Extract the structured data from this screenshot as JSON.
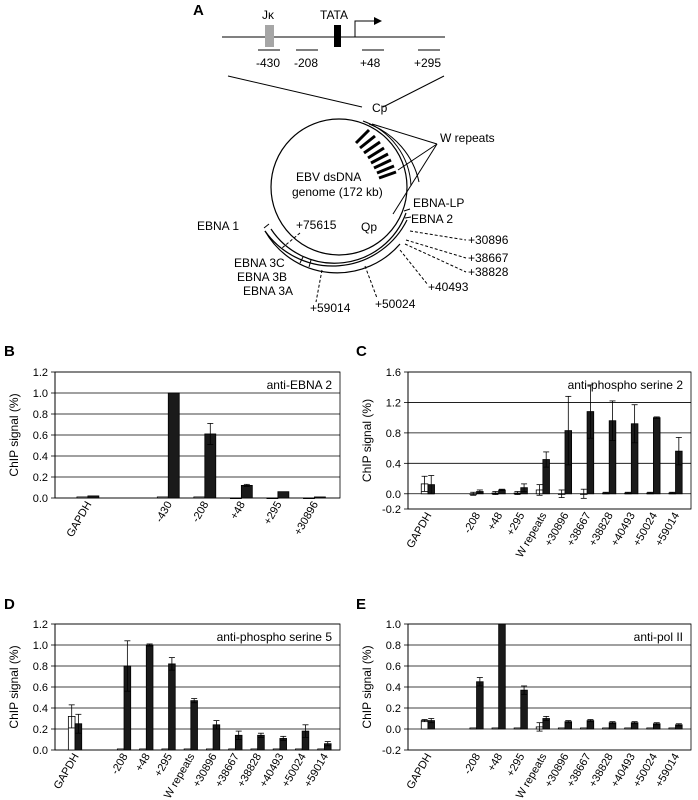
{
  "panels": {
    "A": "A",
    "B": "B",
    "C": "C",
    "D": "D",
    "E": "E"
  },
  "diagram": {
    "gene_labels": {
      "jk": "Jκ",
      "tata": "TATA"
    },
    "primers": [
      "-430",
      "-208",
      "+48",
      "+295"
    ],
    "promoter_cp": "Cp",
    "w_repeats": "W repeats",
    "genome_line1": "EBV dsDNA",
    "genome_line2": "genome (172 kb)",
    "ebna_labels": [
      "EBNA-LP",
      "EBNA 2",
      "EBNA 1",
      "EBNA 3C",
      "EBNA 3B",
      "EBNA 3A"
    ],
    "qp": "Qp",
    "amplicons": [
      "+75615",
      "+30896",
      "+38667",
      "+38828",
      "+40493",
      "+50024",
      "+59014"
    ]
  },
  "chart_data": [
    {
      "id": "B",
      "type": "bar",
      "annotation": "anti-EBNA 2",
      "ylabel": "ChIP signal (%)",
      "ylim": [
        0,
        1.2
      ],
      "yticks": [
        "0.0",
        "0.2",
        "0.4",
        "0.6",
        "0.8",
        "1.0",
        "1.2"
      ],
      "categories": [
        "GAPDH",
        "-430",
        "-208",
        "+48",
        "+295",
        "+30896"
      ],
      "gap_after": [
        0
      ],
      "series": [
        {
          "color": "#ffffff",
          "values": [
            0.01,
            0.01,
            0.01,
            0.0,
            0.0,
            0.0
          ],
          "err": [
            0,
            0,
            0,
            0,
            0,
            0
          ]
        },
        {
          "color": "#1a1a1a",
          "values": [
            0.02,
            1.0,
            0.61,
            0.12,
            0.06,
            0.01
          ],
          "err": [
            0,
            0,
            0.1,
            0.01,
            0,
            0
          ]
        }
      ]
    },
    {
      "id": "C",
      "type": "bar",
      "annotation": "anti-phospho serine 2",
      "ylabel": "ChIP signal (%)",
      "ylim": [
        -0.2,
        1.6
      ],
      "yticks": [
        "-0.2",
        "0.0",
        "0.4",
        "0.8",
        "1.2",
        "1.6"
      ],
      "categories": [
        "GAPDH",
        "-208",
        "+48",
        "+295",
        "W repeats",
        "+30896",
        "+38667",
        "+38828",
        "+40493",
        "+50024",
        "+59014"
      ],
      "gap_after": [
        0
      ],
      "series": [
        {
          "color": "#ffffff",
          "values": [
            0.13,
            0.0,
            0.01,
            0.01,
            0.05,
            0.0,
            0.0,
            0.01,
            0.01,
            0.01,
            0.01
          ],
          "err": [
            0.1,
            0.02,
            0.02,
            0.02,
            0.07,
            0.05,
            0.06,
            0.01,
            0.01,
            0.01,
            0.01
          ]
        },
        {
          "color": "#1a1a1a",
          "values": [
            0.12,
            0.03,
            0.05,
            0.08,
            0.45,
            0.83,
            1.08,
            0.96,
            0.92,
            1.0,
            0.56
          ],
          "err": [
            0.12,
            0.02,
            0.01,
            0.05,
            0.1,
            0.45,
            0.35,
            0.26,
            0.25,
            0.01,
            0.18
          ]
        }
      ]
    },
    {
      "id": "D",
      "type": "bar",
      "annotation": "anti-phospho serine 5",
      "ylabel": "ChIP signal (%)",
      "ylim": [
        0,
        1.2
      ],
      "yticks": [
        "0.0",
        "0.2",
        "0.4",
        "0.6",
        "0.8",
        "1.0",
        "1.2"
      ],
      "categories": [
        "GAPDH",
        "-208",
        "+48",
        "+295",
        "W repeats",
        "+30896",
        "+38667",
        "+38828",
        "+40493",
        "+50024",
        "+59014"
      ],
      "gap_after": [
        0
      ],
      "series": [
        {
          "color": "#ffffff",
          "values": [
            0.32,
            0.01,
            0.01,
            0.01,
            0.01,
            0.01,
            0.01,
            0.01,
            0.01,
            0.01,
            0.01
          ],
          "err": [
            0.11,
            0,
            0,
            0,
            0,
            0,
            0,
            0,
            0,
            0,
            0
          ]
        },
        {
          "color": "#1a1a1a",
          "values": [
            0.25,
            0.8,
            1.0,
            0.82,
            0.47,
            0.24,
            0.14,
            0.14,
            0.11,
            0.18,
            0.06
          ],
          "err": [
            0.09,
            0.24,
            0.01,
            0.06,
            0.02,
            0.04,
            0.04,
            0.02,
            0.02,
            0.06,
            0.02
          ]
        }
      ]
    },
    {
      "id": "E",
      "type": "bar",
      "annotation": "anti-pol II",
      "ylabel": "ChIP signal (%)",
      "ylim": [
        -0.2,
        1.0
      ],
      "yticks": [
        "-0.2",
        "0.0",
        "0.2",
        "0.4",
        "0.6",
        "0.8",
        "1.0"
      ],
      "categories": [
        "GAPDH",
        "-208",
        "+48",
        "+295",
        "W repeats",
        "+30896",
        "+38667",
        "+38828",
        "+40493",
        "+50024",
        "+59014"
      ],
      "gap_after": [
        0
      ],
      "series": [
        {
          "color": "#ffffff",
          "values": [
            0.08,
            0.01,
            0.01,
            0.01,
            0.02,
            0.01,
            0.01,
            0.01,
            0.01,
            0.01,
            0.01
          ],
          "err": [
            0.01,
            0,
            0,
            0,
            0.04,
            0,
            0,
            0,
            0,
            0,
            0
          ]
        },
        {
          "color": "#1a1a1a",
          "values": [
            0.08,
            0.45,
            1.0,
            0.37,
            0.1,
            0.07,
            0.08,
            0.06,
            0.06,
            0.05,
            0.04
          ],
          "err": [
            0.02,
            0.04,
            0,
            0.04,
            0.02,
            0.01,
            0.01,
            0.01,
            0.01,
            0.01,
            0.01
          ]
        }
      ]
    }
  ]
}
